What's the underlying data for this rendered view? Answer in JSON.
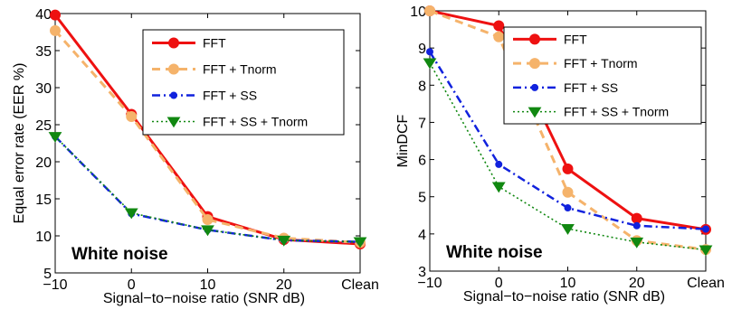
{
  "chart_data": [
    {
      "type": "line",
      "x_labels": [
        "−10",
        "0",
        "10",
        "20",
        "Clean"
      ],
      "x": [
        -10,
        0,
        10,
        20,
        30
      ],
      "xlabel": "Signal−to−noise ratio (SNR dB)",
      "ylabel": "Equal error rate (EER %)",
      "ylim": [
        5,
        40
      ],
      "yticks": [
        5,
        10,
        15,
        20,
        25,
        30,
        35,
        40
      ],
      "annotation": "White noise",
      "legend_position": "top-right",
      "grid": false,
      "series": [
        {
          "name": "FFT",
          "values": [
            39.8,
            26.4,
            12.6,
            9.5,
            8.9
          ],
          "color": "#ee1111",
          "style": "solid",
          "marker": "circle"
        },
        {
          "name": "FFT + Tnorm",
          "values": [
            37.7,
            26.1,
            12.2,
            9.7,
            9.1
          ],
          "color": "#f5b36b",
          "style": "dashed",
          "marker": "circle"
        },
        {
          "name": "FFT + SS",
          "values": [
            23.4,
            13.0,
            10.8,
            9.4,
            9.2
          ],
          "color": "#1122dd",
          "style": "dashdot",
          "marker": "dot"
        },
        {
          "name": "FFT + SS + Tnorm",
          "values": [
            23.4,
            13.1,
            10.8,
            9.4,
            9.2
          ],
          "color": "#118811",
          "style": "dotted",
          "marker": "triangle-down"
        }
      ]
    },
    {
      "type": "line",
      "x_labels": [
        "−10",
        "0",
        "10",
        "20",
        "Clean"
      ],
      "x": [
        -10,
        0,
        10,
        20,
        30
      ],
      "xlabel": "Signal−to−noise ratio (SNR dB)",
      "ylabel": "MinDCF",
      "ylim": [
        3,
        10
      ],
      "yticks": [
        3,
        4,
        5,
        6,
        7,
        8,
        9,
        10
      ],
      "annotation": "White noise",
      "legend_position": "top-right",
      "grid": false,
      "series": [
        {
          "name": "FFT",
          "values": [
            10.0,
            9.6,
            5.75,
            4.42,
            4.12
          ],
          "color": "#ee1111",
          "style": "solid",
          "marker": "circle"
        },
        {
          "name": "FFT + Tnorm",
          "values": [
            10.0,
            9.3,
            5.12,
            3.82,
            3.58
          ],
          "color": "#f5b36b",
          "style": "dashed",
          "marker": "circle"
        },
        {
          "name": "FFT + SS",
          "values": [
            8.9,
            5.87,
            4.7,
            4.22,
            4.13
          ],
          "color": "#1122dd",
          "style": "dashdot",
          "marker": "dot"
        },
        {
          "name": "FFT + SS + Tnorm",
          "values": [
            8.6,
            5.27,
            4.14,
            3.78,
            3.57
          ],
          "color": "#118811",
          "style": "dotted",
          "marker": "triangle-down"
        }
      ]
    }
  ]
}
